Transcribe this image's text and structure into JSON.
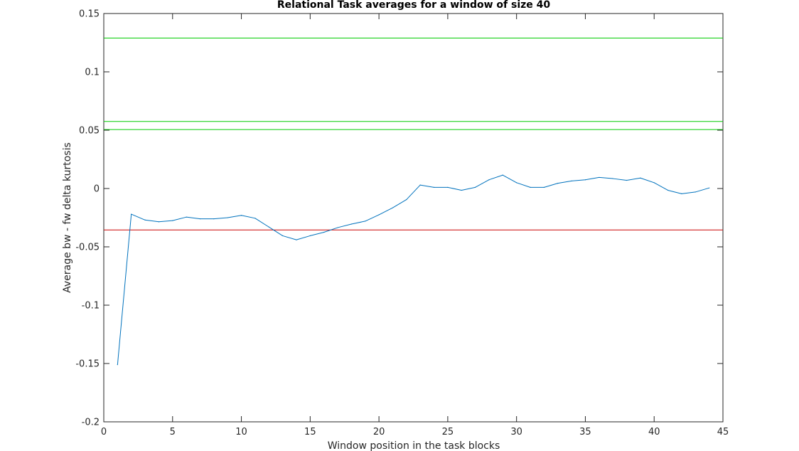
{
  "chart_data": {
    "type": "line",
    "title": "Relational Task averages for a window of size 40",
    "xlabel": "Window position in the task blocks",
    "ylabel": "Average bw - fw delta kurtosis",
    "xlim": [
      0,
      45
    ],
    "ylim": [
      -0.2,
      0.15
    ],
    "xticks": [
      0,
      5,
      10,
      15,
      20,
      25,
      30,
      35,
      40,
      45
    ],
    "yticks": [
      -0.2,
      -0.15,
      -0.1,
      -0.05,
      0,
      0.05,
      0.1,
      0.15
    ],
    "xtick_labels": [
      "0",
      "5",
      "10",
      "15",
      "20",
      "25",
      "30",
      "35",
      "40",
      "45"
    ],
    "ytick_labels": [
      "-0.2",
      "-0.15",
      "-0.1",
      "-0.05",
      "0",
      "0.05",
      "0.1",
      "0.15"
    ],
    "grid": false,
    "series": [
      {
        "color": "#0072bd",
        "x": [
          1,
          2,
          3,
          4,
          5,
          6,
          7,
          8,
          9,
          10,
          11,
          12,
          13,
          14,
          15,
          16,
          17,
          18,
          19,
          20,
          21,
          22,
          23,
          24,
          25,
          26,
          27,
          28,
          29,
          30,
          31,
          32,
          33,
          34,
          35,
          36,
          37,
          38,
          39,
          40,
          41,
          42,
          43,
          44
        ],
        "y": [
          -0.151,
          -0.022,
          -0.027,
          -0.0285,
          -0.0275,
          -0.0245,
          -0.026,
          -0.026,
          -0.025,
          -0.023,
          -0.0255,
          -0.033,
          -0.0405,
          -0.044,
          -0.0405,
          -0.0375,
          -0.0335,
          -0.0305,
          -0.028,
          -0.0225,
          -0.0165,
          -0.0095,
          0.003,
          0.001,
          0.001,
          -0.0015,
          0.001,
          0.0075,
          0.0115,
          0.005,
          0.001,
          0.001,
          0.0045,
          0.0065,
          0.0075,
          0.0095,
          0.0085,
          0.007,
          0.009,
          0.005,
          -0.0015,
          -0.0045,
          -0.003,
          0.0005
        ]
      }
    ],
    "reference_lines": [
      {
        "y": 0.129,
        "color": "#00cc00"
      },
      {
        "y": 0.0575,
        "color": "#00cc00"
      },
      {
        "y": 0.0505,
        "color": "#00cc00"
      },
      {
        "y": -0.0355,
        "color": "#cc0000"
      }
    ]
  }
}
